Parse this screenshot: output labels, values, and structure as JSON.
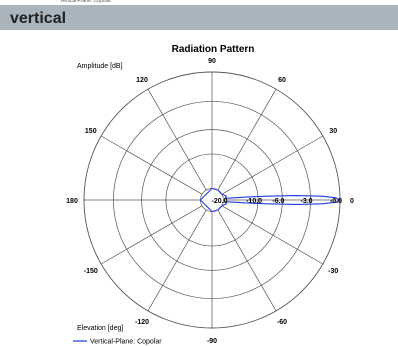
{
  "header": {
    "caption": "Vertical-Plane: Copolar",
    "section_title": "vertical"
  },
  "chart_data": {
    "type": "polar",
    "title": "Radiation Pattern",
    "radial_axis_label": "Amplitude [dB]",
    "angle_axis_label": "Elevation [deg]",
    "radial_ticks": [
      "-20.0",
      "-10.0",
      "-6.0",
      "-3.0",
      "-0.0"
    ],
    "angle_ticks": [
      "0",
      "30",
      "60",
      "90",
      "120",
      "150",
      "180",
      "-150",
      "-120",
      "-90",
      "-60",
      "-30"
    ],
    "series": [
      {
        "name": "Vertical-Plane: Copolar",
        "color": "#1f3ce0",
        "points": [
          {
            "angle": 0,
            "db": -0.0
          },
          {
            "angle": 1,
            "db": -0.4
          },
          {
            "angle": 2,
            "db": -1.8
          },
          {
            "angle": 3,
            "db": -4.5
          },
          {
            "angle": 4,
            "db": -8.5
          },
          {
            "angle": 5,
            "db": -13.5
          },
          {
            "angle": 6,
            "db": -18.0
          },
          {
            "angle": 8,
            "db": -19.5
          },
          {
            "angle": 15,
            "db": -19.0
          },
          {
            "angle": 30,
            "db": -20.0
          },
          {
            "angle": 60,
            "db": -20.0
          },
          {
            "angle": 90,
            "db": -20.0
          },
          {
            "angle": 180,
            "db": -20.0
          },
          {
            "angle": -90,
            "db": -20.0
          },
          {
            "angle": -60,
            "db": -20.0
          },
          {
            "angle": -30,
            "db": -20.0
          },
          {
            "angle": -15,
            "db": -19.0
          },
          {
            "angle": -8,
            "db": -19.5
          },
          {
            "angle": -6,
            "db": -18.0
          },
          {
            "angle": -5,
            "db": -13.5
          },
          {
            "angle": -4,
            "db": -8.5
          },
          {
            "angle": -3,
            "db": -4.5
          },
          {
            "angle": -2,
            "db": -1.8
          },
          {
            "angle": -1,
            "db": -0.4
          },
          {
            "angle": 0,
            "db": -0.0
          }
        ]
      }
    ],
    "grid": true,
    "legend_position": "bottom-left"
  }
}
